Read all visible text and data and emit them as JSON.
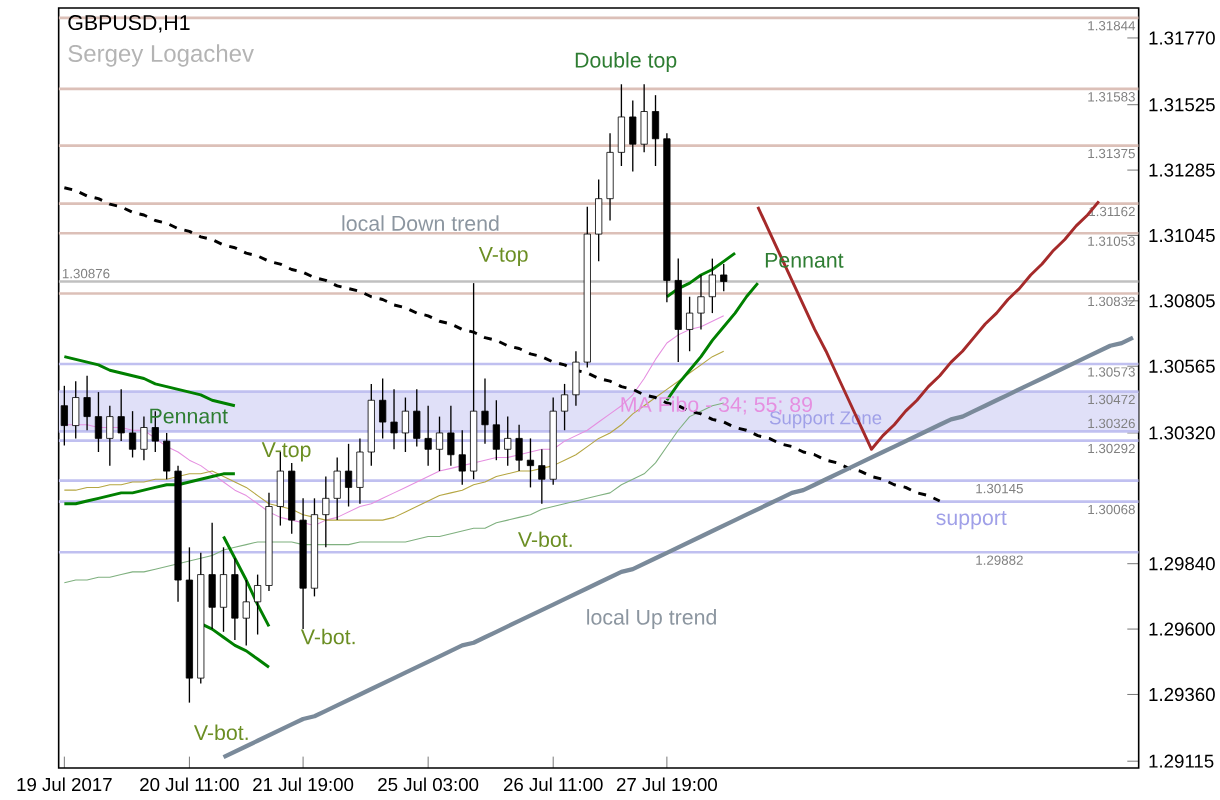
{
  "chart_data": {
    "type": "candlestick",
    "title": "GBPUSD,H1",
    "subtitle": "Sergey Logachev",
    "categories": [
      "19 Jul 2017",
      null,
      null,
      null,
      null,
      null,
      null,
      null,
      null,
      null,
      null,
      "20 Jul 11:00",
      null,
      null,
      null,
      null,
      null,
      null,
      null,
      null,
      null,
      "21 Jul 19:00",
      null,
      null,
      null,
      null,
      null,
      null,
      null,
      null,
      null,
      null,
      "25 Jul 03:00",
      null,
      null,
      null,
      null,
      null,
      null,
      null,
      null,
      null,
      null,
      "26 Jul 11:00",
      null,
      null,
      null,
      null,
      null,
      null,
      null,
      null,
      null,
      "27 Jul 19:00",
      null,
      null,
      null,
      null,
      null,
      null,
      null,
      null,
      null,
      null,
      null,
      null,
      null,
      null,
      null,
      null,
      null,
      null,
      null,
      null,
      null,
      null,
      null,
      null,
      null,
      null,
      null,
      null,
      null,
      null,
      null,
      null,
      null,
      null,
      null,
      null,
      null,
      null,
      null,
      null,
      null
    ],
    "ohlc": [
      [
        1.3042,
        1.30493,
        1.30274,
        1.30347
      ],
      [
        1.30347,
        1.3051,
        1.303,
        1.3045
      ],
      [
        1.3045,
        1.3053,
        1.3033,
        1.3038
      ],
      [
        1.3038,
        1.3047,
        1.3025,
        1.303
      ],
      [
        1.303,
        1.3042,
        1.302,
        1.3038
      ],
      [
        1.3038,
        1.3048,
        1.3029,
        1.3032
      ],
      [
        1.3032,
        1.304,
        1.3023,
        1.3026
      ],
      [
        1.3026,
        1.3038,
        1.3022,
        1.3034
      ],
      [
        1.3034,
        1.304,
        1.3025,
        1.3029
      ],
      [
        1.3029,
        1.3032,
        1.3015,
        1.3018
      ],
      [
        1.3018,
        1.302,
        1.297,
        1.2978
      ],
      [
        1.2978,
        1.299,
        1.2933,
        1.2942
      ],
      [
        1.2942,
        1.2988,
        1.294,
        1.298
      ],
      [
        1.298,
        1.2999,
        1.296,
        1.2968
      ],
      [
        1.2968,
        1.299,
        1.2959,
        1.298
      ],
      [
        1.298,
        1.2986,
        1.2956,
        1.2964
      ],
      [
        1.2964,
        1.2978,
        1.2954,
        1.297
      ],
      [
        1.297,
        1.298,
        1.2958,
        1.2976
      ],
      [
        1.2976,
        1.301,
        1.2974,
        1.3005
      ],
      [
        1.3005,
        1.3025,
        1.2998,
        1.3018
      ],
      [
        1.3018,
        1.3021,
        1.2995,
        1.3
      ],
      [
        1.3,
        1.3008,
        1.296,
        1.2975
      ],
      [
        1.2975,
        1.3008,
        1.2972,
        1.3002
      ],
      [
        1.3002,
        1.3016,
        1.299,
        1.3008
      ],
      [
        1.3008,
        1.3023,
        1.3,
        1.3018
      ],
      [
        1.3018,
        1.3028,
        1.3005,
        1.3012
      ],
      [
        1.3012,
        1.303,
        1.3006,
        1.3025
      ],
      [
        1.3025,
        1.305,
        1.302,
        1.3044
      ],
      [
        1.3044,
        1.3052,
        1.303,
        1.3036
      ],
      [
        1.3036,
        1.3048,
        1.3026,
        1.3032
      ],
      [
        1.3032,
        1.3045,
        1.3025,
        1.304
      ],
      [
        1.304,
        1.3048,
        1.3027,
        1.303
      ],
      [
        1.303,
        1.3042,
        1.302,
        1.3026
      ],
      [
        1.3026,
        1.3038,
        1.3018,
        1.3032
      ],
      [
        1.3032,
        1.3042,
        1.302,
        1.3024
      ],
      [
        1.3024,
        1.3033,
        1.3013,
        1.3018
      ],
      [
        1.3018,
        1.3087,
        1.3015,
        1.304
      ],
      [
        1.304,
        1.3052,
        1.3028,
        1.3035
      ],
      [
        1.3035,
        1.3044,
        1.3022,
        1.3026
      ],
      [
        1.3026,
        1.3038,
        1.302,
        1.303
      ],
      [
        1.303,
        1.3035,
        1.3018,
        1.3022
      ],
      [
        1.3022,
        1.303,
        1.3012,
        1.302
      ],
      [
        1.302,
        1.3026,
        1.3006,
        1.3015
      ],
      [
        1.3015,
        1.3045,
        1.3013,
        1.304
      ],
      [
        1.304,
        1.305,
        1.3033,
        1.3046
      ],
      [
        1.3046,
        1.3062,
        1.3042,
        1.3058
      ],
      [
        1.3058,
        1.3115,
        1.3056,
        1.3105
      ],
      [
        1.3105,
        1.3125,
        1.3095,
        1.3118
      ],
      [
        1.3118,
        1.3142,
        1.311,
        1.3135
      ],
      [
        1.3135,
        1.316,
        1.313,
        1.3148
      ],
      [
        1.3148,
        1.3154,
        1.3128,
        1.3138
      ],
      [
        1.3138,
        1.316,
        1.3135,
        1.315
      ],
      [
        1.315,
        1.3156,
        1.313,
        1.314
      ],
      [
        1.314,
        1.3142,
        1.308,
        1.3088
      ],
      [
        1.3088,
        1.3096,
        1.3058,
        1.307
      ],
      [
        1.307,
        1.3082,
        1.3062,
        1.3076
      ],
      [
        1.3076,
        1.309,
        1.307,
        1.3082
      ],
      [
        1.3082,
        1.3096,
        1.3076,
        1.309
      ],
      [
        1.309,
        1.3094,
        1.3084,
        1.30876
      ],
      null,
      null,
      null,
      null,
      null,
      null,
      null,
      null,
      null,
      null,
      null,
      null,
      null,
      null,
      null,
      null,
      null,
      null,
      null,
      null,
      null,
      null,
      null,
      null,
      null,
      null,
      null,
      null,
      null,
      null,
      null,
      null,
      null,
      null,
      null,
      null
    ],
    "series": [
      {
        "type": "line",
        "color": "#e58fe0",
        "values": [
          1.3035,
          1.3035,
          1.3035,
          1.3034,
          1.3034,
          1.3034,
          1.3033,
          1.3033,
          1.303,
          1.3027,
          1.3025,
          1.3022,
          1.302,
          1.3017,
          1.3014,
          1.3011,
          1.3009,
          1.3006,
          1.3003,
          1.3001,
          1.3,
          1.2999,
          1.2998,
          1.3,
          1.3001,
          1.3003,
          1.3005,
          1.3006,
          1.3008,
          1.301,
          1.3012,
          1.3014,
          1.3016,
          1.3018,
          1.3019,
          1.302,
          1.3021,
          1.3022,
          1.3023,
          1.3023,
          1.3024,
          1.3025,
          1.3026,
          1.3026,
          1.3029,
          1.3031,
          1.3033,
          1.3036,
          1.3039,
          1.3042,
          1.3046,
          1.3052,
          1.3059,
          1.3065,
          1.3068,
          1.307,
          1.3071,
          1.3073,
          1.3075,
          null,
          null,
          null,
          null,
          null,
          null,
          null,
          null,
          null,
          null,
          null,
          null,
          null,
          null,
          null,
          null,
          null,
          null,
          null,
          null,
          null,
          null,
          null,
          null,
          null,
          null,
          null,
          null,
          null,
          null,
          null,
          null,
          null,
          null,
          null,
          null
        ]
      },
      {
        "type": "line",
        "color": "#b5a642",
        "values": [
          1.3011,
          1.3011,
          1.3012,
          1.3012,
          1.3013,
          1.3013,
          1.3014,
          1.3014,
          1.3015,
          1.3015,
          1.3016,
          1.3017,
          1.3017,
          1.3018,
          1.3016,
          1.3014,
          1.3012,
          1.3009,
          1.3006,
          1.3005,
          1.3004,
          1.3002,
          1.3001,
          1.3,
          1.3,
          1.3,
          1.3,
          1.3,
          1.3,
          1.3001,
          1.3003,
          1.3005,
          1.3007,
          1.3009,
          1.301,
          1.3011,
          1.3013,
          1.3014,
          1.3016,
          1.3017,
          1.3018,
          1.3018,
          1.3019,
          1.302,
          1.3022,
          1.3024,
          1.3027,
          1.303,
          1.3032,
          1.3035,
          1.3039,
          1.3042,
          1.3045,
          1.3048,
          1.3051,
          1.3054,
          1.3057,
          1.306,
          1.3062,
          null,
          null,
          null,
          null,
          null,
          null,
          null,
          null,
          null,
          null,
          null,
          null,
          null,
          null,
          null,
          null,
          null,
          null,
          null,
          null,
          null,
          null,
          null,
          null,
          null,
          null,
          null,
          null,
          null,
          null,
          null,
          null,
          null,
          null,
          null,
          null
        ]
      },
      {
        "type": "line",
        "color": "#7fb07f",
        "values": [
          1.2977,
          1.2978,
          1.2978,
          1.2979,
          1.2979,
          1.298,
          1.2981,
          1.2981,
          1.2982,
          1.2983,
          1.2984,
          1.2985,
          1.2986,
          1.2987,
          1.2989,
          1.299,
          1.2991,
          1.2992,
          1.2992,
          1.2992,
          1.2992,
          1.2991,
          1.2991,
          1.2991,
          1.2991,
          1.2991,
          1.2992,
          1.2992,
          1.2992,
          1.2992,
          1.2992,
          1.2993,
          1.2994,
          1.2994,
          1.2995,
          1.2996,
          1.2997,
          1.2997,
          1.2999,
          1.3,
          1.3001,
          1.3002,
          1.3004,
          1.3005,
          1.3006,
          1.3007,
          1.3008,
          1.3009,
          1.301,
          1.3013,
          1.3015,
          1.3017,
          1.3021,
          1.3027,
          1.3033,
          1.3038,
          1.304,
          1.3042,
          1.3043,
          null,
          null,
          null,
          null,
          null,
          null,
          null,
          null,
          null,
          null,
          null,
          null,
          null,
          null,
          null,
          null,
          null,
          null,
          null,
          null,
          null,
          null,
          null,
          null,
          null,
          null,
          null,
          null,
          null,
          null,
          null,
          null,
          null,
          null,
          null,
          null
        ]
      },
      {
        "type": "line",
        "color": "#000000",
        "line_style": "dashed",
        "values": [
          1.3122,
          1.3121,
          1.3119,
          1.3118,
          1.3116,
          1.3115,
          1.3113,
          1.3112,
          1.311,
          1.3109,
          1.3107,
          1.3106,
          1.3104,
          1.3103,
          1.3101,
          1.31,
          1.3098,
          1.3097,
          1.3095,
          1.3094,
          1.3092,
          1.3091,
          1.3089,
          1.3088,
          1.3086,
          1.3085,
          1.3084,
          1.3082,
          1.3081,
          1.3079,
          1.3078,
          1.3076,
          1.3075,
          1.3073,
          1.3072,
          1.307,
          1.3069,
          1.3067,
          1.3066,
          1.3064,
          1.3063,
          1.3061,
          1.306,
          1.3058,
          1.3057,
          1.3055,
          1.3054,
          1.3052,
          1.3051,
          1.3049,
          1.3048,
          1.3046,
          1.3045,
          1.3043,
          1.3042,
          1.304,
          1.3039,
          1.3037,
          1.3036,
          1.3034,
          1.3033,
          1.3031,
          1.303,
          1.3028,
          1.3027,
          1.3025,
          1.3024,
          1.3022,
          1.3021,
          1.3019,
          1.3018,
          1.3016,
          1.3015,
          1.3013,
          1.3012,
          1.301,
          1.3009,
          1.3007,
          null,
          null,
          null,
          null,
          null,
          null,
          null,
          null,
          null,
          null,
          null,
          null,
          null,
          null,
          null,
          null,
          null
        ]
      },
      {
        "type": "line",
        "color": "#7a8a9a",
        "values": [
          null,
          null,
          null,
          null,
          null,
          null,
          null,
          null,
          null,
          null,
          null,
          null,
          null,
          null,
          1.2913,
          1.2915,
          1.2917,
          1.2919,
          1.2921,
          1.2923,
          1.2925,
          1.2927,
          1.2928,
          1.293,
          1.2932,
          1.2934,
          1.2936,
          1.2938,
          1.294,
          1.2942,
          1.2944,
          1.2946,
          1.2948,
          1.295,
          1.2952,
          1.2954,
          1.2955,
          1.2957,
          1.2959,
          1.2961,
          1.2963,
          1.2965,
          1.2967,
          1.2969,
          1.2971,
          1.2973,
          1.2975,
          1.2977,
          1.2979,
          1.2981,
          1.2982,
          1.2984,
          1.2986,
          1.2988,
          1.299,
          1.2992,
          1.2994,
          1.2996,
          1.2998,
          1.3,
          1.3002,
          1.3004,
          1.3006,
          1.3008,
          1.301,
          1.3011,
          1.3013,
          1.3015,
          1.3017,
          1.3019,
          1.3021,
          1.3023,
          1.3025,
          1.3027,
          1.3029,
          1.3031,
          1.3033,
          1.3035,
          1.3037,
          1.3038,
          1.304,
          1.3042,
          1.3044,
          1.3046,
          1.3048,
          1.305,
          1.3052,
          1.3054,
          1.3056,
          1.3058,
          1.306,
          1.3062,
          1.3064,
          1.3065,
          1.3067
        ]
      },
      {
        "type": "line",
        "color": "#a52a2a",
        "values": [
          null,
          null,
          null,
          null,
          null,
          null,
          null,
          null,
          null,
          null,
          null,
          null,
          null,
          null,
          null,
          null,
          null,
          null,
          null,
          null,
          null,
          null,
          null,
          null,
          null,
          null,
          null,
          null,
          null,
          null,
          null,
          null,
          null,
          null,
          null,
          null,
          null,
          null,
          null,
          null,
          null,
          null,
          null,
          null,
          null,
          null,
          null,
          null,
          null,
          null,
          null,
          null,
          null,
          null,
          null,
          null,
          null,
          null,
          null,
          null,
          null,
          1.3115,
          1.3106,
          1.3097,
          1.3088,
          1.3079,
          1.307,
          1.3062,
          1.3053,
          1.3044,
          1.3035,
          1.3026,
          1.3031,
          1.3035,
          1.304,
          1.3044,
          1.3049,
          1.3053,
          1.3058,
          1.3062,
          1.3067,
          1.3072,
          1.3076,
          1.3081,
          1.3085,
          1.309,
          1.3094,
          1.3099,
          1.3103,
          1.3108,
          1.3112,
          1.3117,
          null,
          null,
          null
        ]
      },
      {
        "type": "line",
        "color": "#008000",
        "values": [
          1.306,
          1.3059,
          1.3058,
          1.3057,
          1.3055,
          1.3054,
          1.3053,
          1.3052,
          1.305,
          1.3049,
          1.3048,
          1.3047,
          1.3046,
          1.3044,
          1.3043,
          1.3042,
          null,
          null,
          null,
          null,
          null,
          null,
          null,
          null,
          null,
          null,
          null,
          null,
          null,
          null,
          null,
          null,
          null,
          null,
          null,
          null,
          null,
          null,
          null,
          null,
          null,
          null,
          null,
          null,
          null,
          null,
          null,
          null,
          null,
          null,
          null,
          null,
          null,
          null,
          null,
          null,
          null,
          null,
          null,
          null,
          null,
          null,
          null,
          null,
          null,
          null,
          null,
          null,
          null,
          null,
          null,
          null,
          null,
          null,
          null,
          null,
          null,
          null,
          null,
          null,
          null,
          null,
          null,
          null,
          null,
          null,
          null,
          null,
          null,
          null,
          null,
          null,
          null,
          null,
          null
        ]
      },
      {
        "type": "line",
        "color": "#008000",
        "values": [
          1.3006,
          1.3006,
          1.3007,
          1.3008,
          1.3009,
          1.301,
          1.301,
          1.3011,
          1.3012,
          1.3013,
          1.3013,
          1.3014,
          1.3015,
          1.3016,
          1.3017,
          1.3017,
          null,
          null,
          null,
          null,
          null,
          null,
          null,
          null,
          null,
          null,
          null,
          null,
          null,
          null,
          null,
          null,
          null,
          null,
          null,
          null,
          null,
          null,
          null,
          null,
          null,
          null,
          null,
          null,
          null,
          null,
          null,
          null,
          null,
          null,
          null,
          null,
          null,
          null,
          null,
          null,
          null,
          null,
          null,
          null,
          null,
          null,
          null,
          null,
          null,
          null,
          null,
          null,
          null,
          null,
          null,
          null,
          null,
          null,
          null,
          null,
          null,
          null,
          null,
          null,
          null,
          null,
          null,
          null,
          null,
          null,
          null,
          null,
          null,
          null,
          null,
          null,
          null,
          null,
          null
        ]
      },
      {
        "type": "line",
        "color": "#008000",
        "values": [
          null,
          null,
          null,
          null,
          null,
          null,
          null,
          null,
          null,
          null,
          null,
          null,
          null,
          null,
          1.2994,
          1.2986,
          1.2978,
          1.2969,
          1.2961,
          null,
          null,
          null,
          null,
          null,
          null,
          null,
          null,
          null,
          null,
          null,
          null,
          null,
          null,
          null,
          null,
          null,
          null,
          null,
          null,
          null,
          null,
          null,
          null,
          null,
          null,
          null,
          null,
          null,
          null,
          null,
          null,
          null,
          null,
          null,
          null,
          null,
          null,
          null,
          null,
          null,
          null,
          null,
          null,
          null,
          null,
          null,
          null,
          null,
          null,
          null,
          null,
          null,
          null,
          null,
          null,
          null,
          null,
          null,
          null,
          null,
          null,
          null,
          null,
          null,
          null,
          null,
          null,
          null,
          null,
          null,
          null,
          null,
          null,
          null,
          null
        ]
      },
      {
        "type": "line",
        "color": "#008000",
        "values": [
          null,
          null,
          null,
          null,
          null,
          null,
          null,
          null,
          null,
          null,
          null,
          null,
          1.2962,
          1.296,
          1.2957,
          1.2954,
          1.2952,
          1.2949,
          1.2946,
          null,
          null,
          null,
          null,
          null,
          null,
          null,
          null,
          null,
          null,
          null,
          null,
          null,
          null,
          null,
          null,
          null,
          null,
          null,
          null,
          null,
          null,
          null,
          null,
          null,
          null,
          null,
          null,
          null,
          null,
          null,
          null,
          null,
          null,
          null,
          null,
          null,
          null,
          null,
          null,
          null,
          null,
          null,
          null,
          null,
          null,
          null,
          null,
          null,
          null,
          null,
          null,
          null,
          null,
          null,
          null,
          null,
          null,
          null,
          null,
          null,
          null,
          null,
          null,
          null,
          null,
          null,
          null,
          null,
          null,
          null,
          null,
          null,
          null,
          null,
          null
        ]
      },
      {
        "type": "line",
        "color": "#008000",
        "values": [
          null,
          null,
          null,
          null,
          null,
          null,
          null,
          null,
          null,
          null,
          null,
          null,
          null,
          null,
          null,
          null,
          null,
          null,
          null,
          null,
          null,
          null,
          null,
          null,
          null,
          null,
          null,
          null,
          null,
          null,
          null,
          null,
          null,
          null,
          null,
          null,
          null,
          null,
          null,
          null,
          null,
          null,
          null,
          null,
          null,
          null,
          null,
          null,
          null,
          null,
          null,
          null,
          null,
          1.3082,
          1.3085,
          1.3087,
          1.309,
          1.3092,
          1.3095,
          1.3098,
          null,
          null,
          null,
          null,
          null,
          null,
          null,
          null,
          null,
          null,
          null,
          null,
          null,
          null,
          null,
          null,
          null,
          null,
          null,
          null,
          null,
          null,
          null,
          null,
          null,
          null,
          null,
          null,
          null,
          null,
          null,
          null,
          null,
          null,
          null
        ]
      },
      {
        "type": "line",
        "color": "#008000",
        "values": [
          null,
          null,
          null,
          null,
          null,
          null,
          null,
          null,
          null,
          null,
          null,
          null,
          null,
          null,
          null,
          null,
          null,
          null,
          null,
          null,
          null,
          null,
          null,
          null,
          null,
          null,
          null,
          null,
          null,
          null,
          null,
          null,
          null,
          null,
          null,
          null,
          null,
          null,
          null,
          null,
          null,
          null,
          null,
          null,
          null,
          null,
          null,
          null,
          null,
          null,
          null,
          null,
          null,
          1.3044,
          1.305,
          1.3055,
          1.306,
          1.3066,
          1.3071,
          1.3076,
          1.3082,
          1.3087,
          null,
          null,
          null,
          null,
          null,
          null,
          null,
          null,
          null,
          null,
          null,
          null,
          null,
          null,
          null,
          null,
          null,
          null,
          null,
          null,
          null,
          null,
          null,
          null,
          null,
          null,
          null,
          null,
          null,
          null,
          null,
          null,
          null
        ]
      }
    ],
    "ylim": [
      1.2909,
      1.3188
    ],
    "yticks": [
      {
        "value": 1.3177,
        "label": "1.31770"
      },
      {
        "value": 1.31525,
        "label": "1.31525"
      },
      {
        "value": 1.31285,
        "label": "1.31285"
      },
      {
        "value": 1.31045,
        "label": "1.31045"
      },
      {
        "value": 1.30805,
        "label": "1.30805"
      },
      {
        "value": 1.30565,
        "label": "1.30565"
      },
      {
        "value": 1.3032,
        "label": "1.30320"
      },
      {
        "value": 1.2984,
        "label": "1.29840"
      },
      {
        "value": 1.296,
        "label": "1.29600"
      },
      {
        "value": 1.2936,
        "label": "1.29360"
      },
      {
        "value": 1.29115,
        "label": "1.29115"
      }
    ],
    "bands": [
      {
        "axis": "y",
        "from": 1.30326,
        "to": 1.30472,
        "label": "Support Zone",
        "color": "#e0e0f8"
      }
    ],
    "ref_lines": [
      {
        "axis": "y",
        "value": 1.31844,
        "label": "1.31844",
        "color": "#dcc0b8"
      },
      {
        "axis": "y",
        "value": 1.31583,
        "label": "1.31583",
        "color": "#dcc0b8"
      },
      {
        "axis": "y",
        "value": 1.31375,
        "label": "1.31375",
        "color": "#dcc0b8"
      },
      {
        "axis": "y",
        "value": 1.31162,
        "label": "1.31162",
        "color": "#dcc0b8"
      },
      {
        "axis": "y",
        "value": 1.31053,
        "label": "1.31053",
        "color": "#dcc0b8"
      },
      {
        "axis": "y",
        "value": 1.30876,
        "label": "1.30876",
        "color": "#c0c0c0"
      },
      {
        "axis": "y",
        "value": 1.30832,
        "label": "1.30832",
        "color": "#dcc0b8"
      },
      {
        "axis": "y",
        "value": 1.30573,
        "label": "1.30573",
        "color": "#c0c0f0"
      },
      {
        "axis": "y",
        "value": 1.30472,
        "label": "1.30472",
        "color": "#c0c0f0"
      },
      {
        "axis": "y",
        "value": 1.30326,
        "label": "1.30326",
        "color": "#c0c0f0"
      },
      {
        "axis": "y",
        "value": 1.30292,
        "label": "1.30292",
        "color": "#c0c0f0"
      },
      {
        "axis": "y",
        "value": 1.30145,
        "label": "1.30145",
        "color": "#c0c0f0"
      },
      {
        "axis": "y",
        "value": 1.30068,
        "label": "1.30068",
        "color": "#c0c0f0"
      },
      {
        "axis": "y",
        "value": 1.29882,
        "label": "1.29882",
        "color": "#c0c0f0"
      }
    ],
    "annotations": [
      "Double top",
      "local Down trend",
      "V-top",
      "V-top",
      "Pennant",
      "Pennant",
      "V-bot.",
      "V-bot.",
      "V-bot.",
      "local Up trend",
      "MA Fibo - 34; 55; 89",
      "support"
    ]
  }
}
